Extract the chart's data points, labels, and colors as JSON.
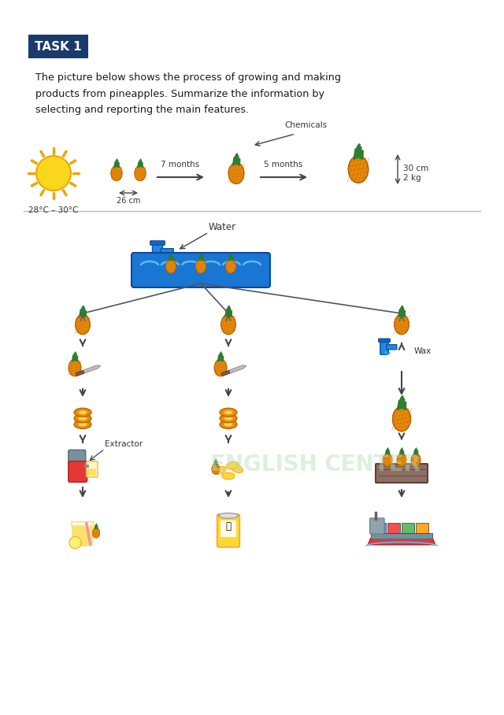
{
  "title": "TASK 1",
  "title_bg": "#1a3a6b",
  "title_color": "#ffffff",
  "body_text": "The picture below shows the process of growing and making\nproducts from pineapples. Summarize the information by\nselecting and reporting the main features.",
  "background_color": "#ffffff",
  "watermark_color": "#b8ddb8",
  "top_labels": {
    "temp": "28°C – 30°C",
    "size1": "26 cm",
    "months1": "7 months",
    "chemicals": "Chemicals",
    "months2": "5 months",
    "size2": "30 cm\n2 kg"
  },
  "section2_label": "Water",
  "wax_label": "Wax",
  "extractor_label": "Extractor",
  "arrow_color": "#444444",
  "line_color": "#999999"
}
